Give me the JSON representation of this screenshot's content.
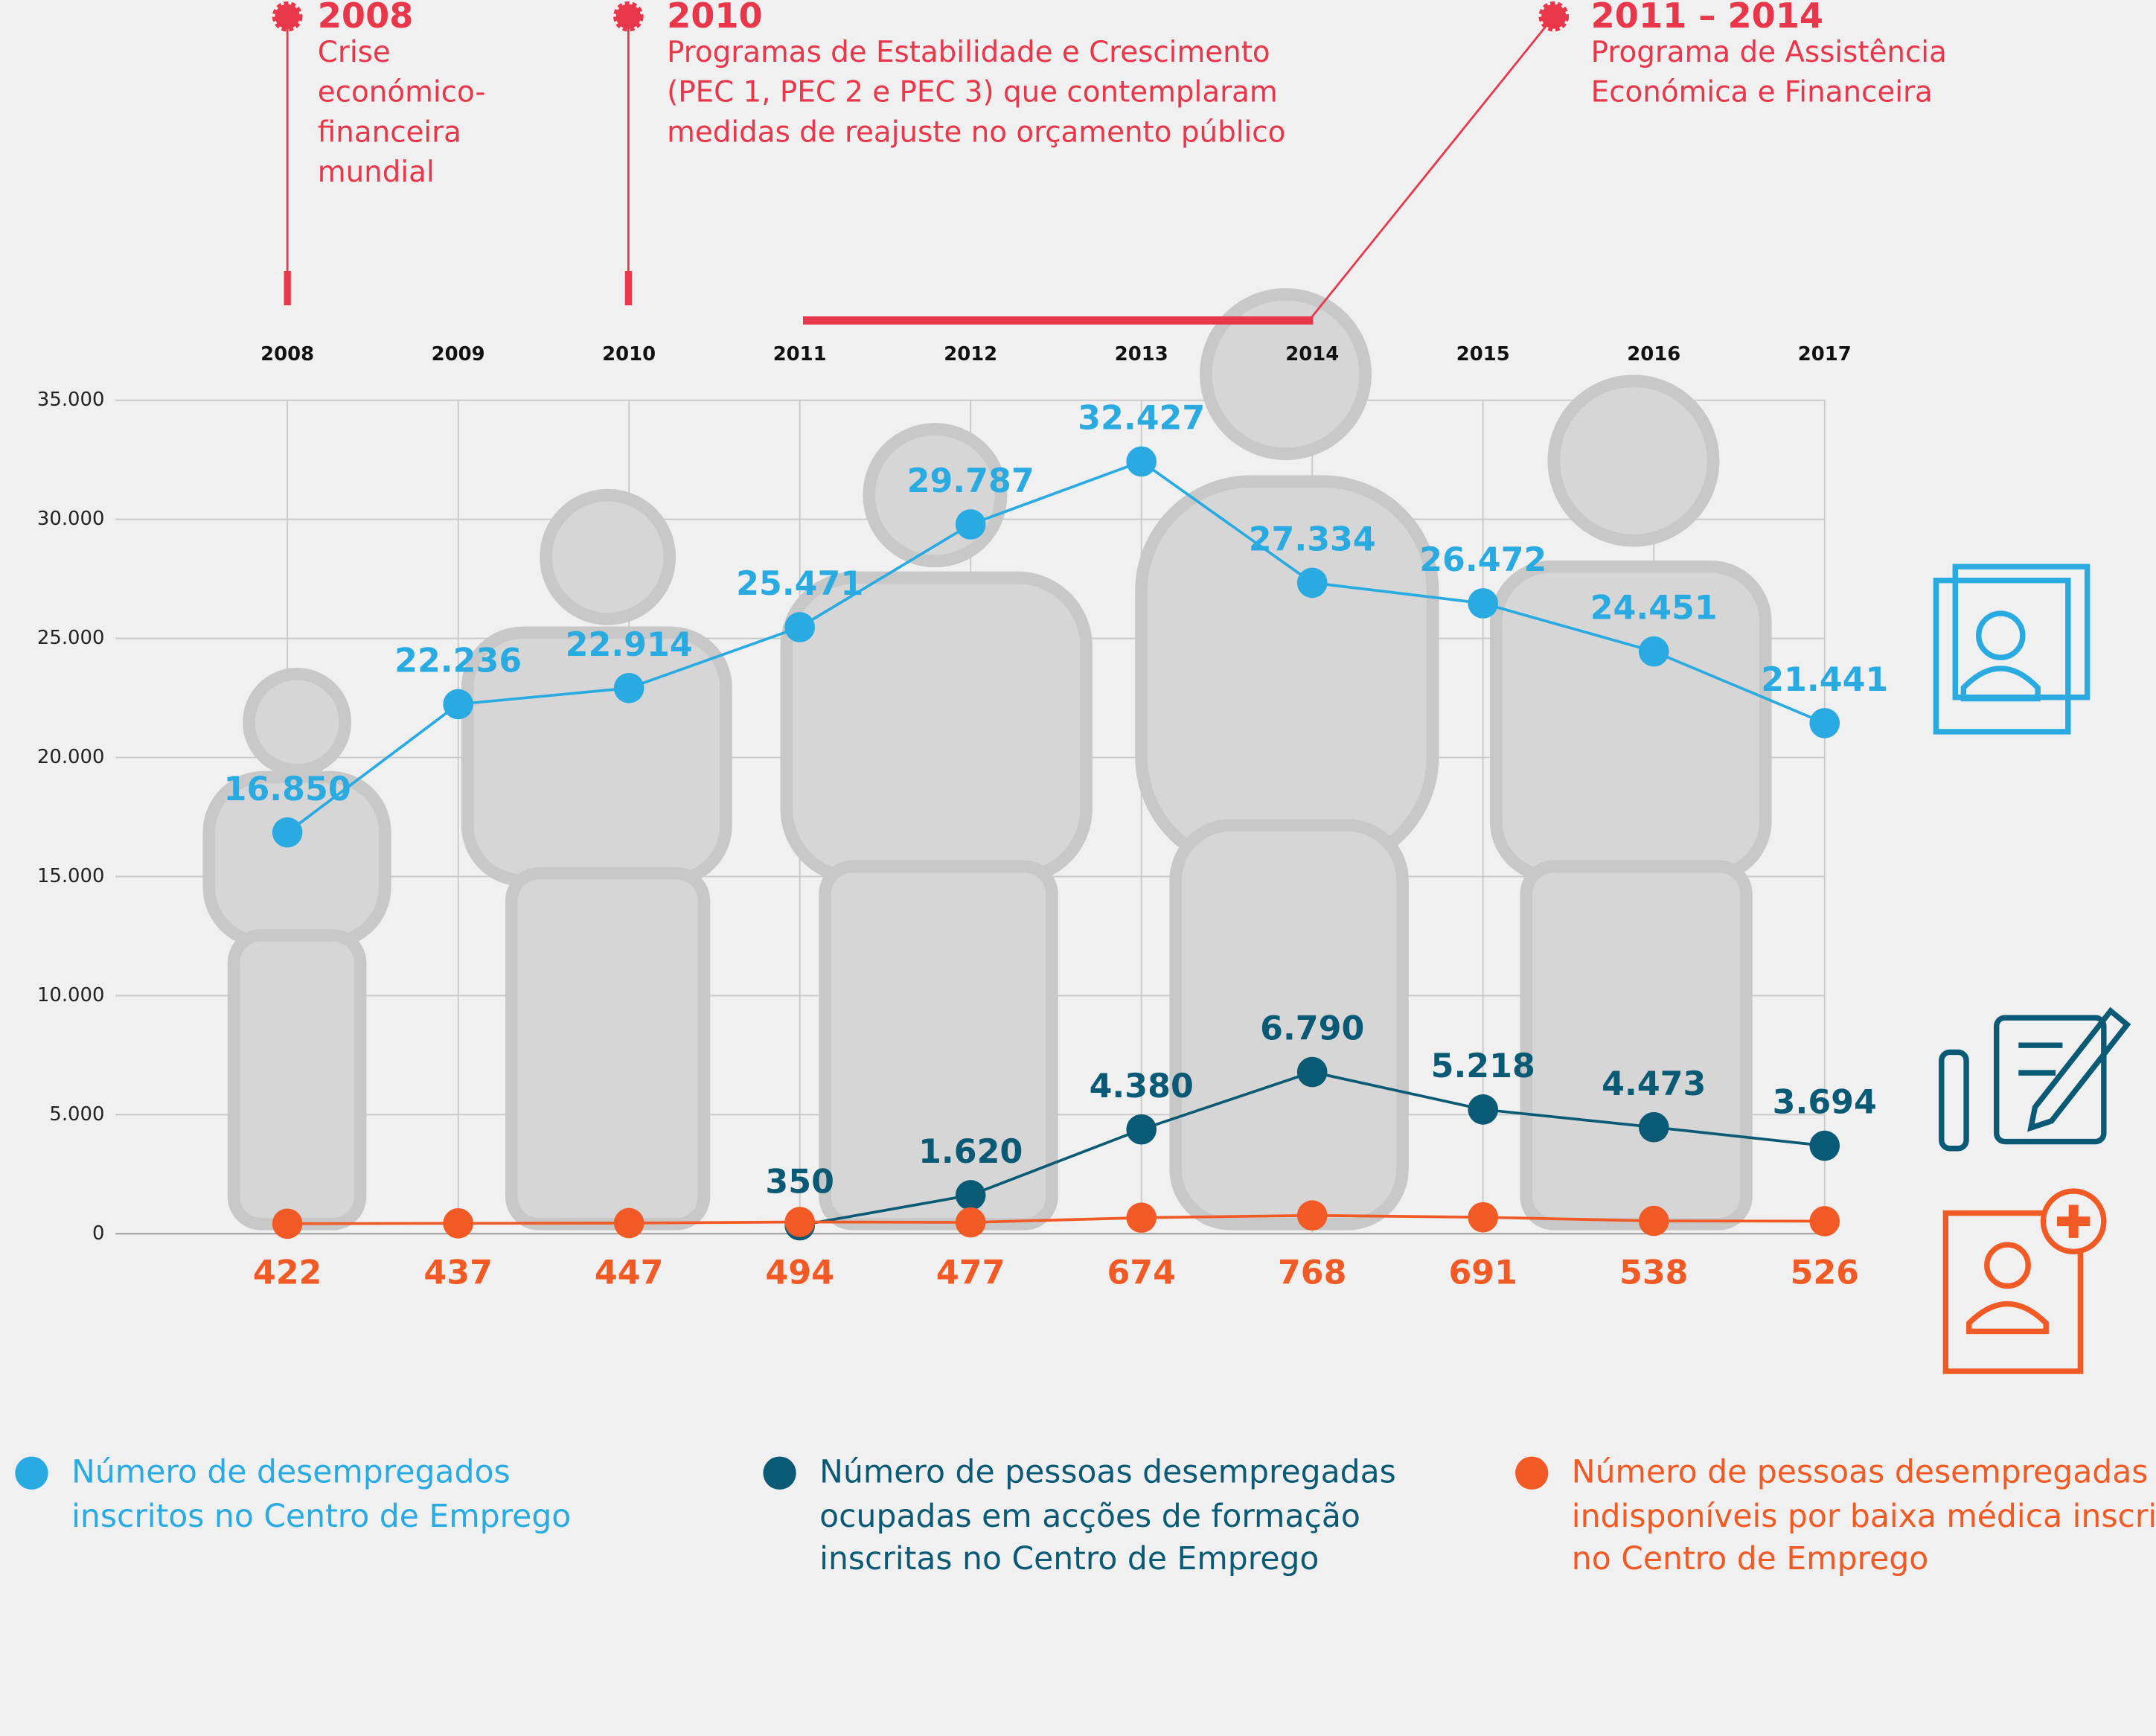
{
  "chart_data": {
    "type": "line",
    "categories": [
      "2008",
      "2009",
      "2010",
      "2011",
      "2012",
      "2013",
      "2014",
      "2015",
      "2016",
      "2017"
    ],
    "ylim": [
      0,
      35000
    ],
    "yticks": [
      0,
      {
        "value": 5000,
        "label": "5.000"
      },
      {
        "value": 10000,
        "label": "10.000"
      },
      {
        "value": 15000,
        "label": "15.000"
      },
      {
        "value": 20000,
        "label": "20.000"
      },
      {
        "value": 25000,
        "label": "25.000"
      },
      {
        "value": 30000,
        "label": "30.000"
      },
      {
        "value": 35000,
        "label": "35.000"
      }
    ],
    "grid": true,
    "annotations": [
      {
        "title": "2008",
        "text": "Crise económico-financeira mundial"
      },
      {
        "title": "2010",
        "text": "Programas de Estabilidade e Crescimento (PEC 1, PEC 2 e PEC 3) que contemplaram medidas de reajuste no orçamento público"
      },
      {
        "title": "2011 – 2014",
        "text": "Programa de Assistência Económica e Financeira"
      }
    ],
    "series": [
      {
        "name": "Número de desempregados inscritos no Centro de Emprego",
        "color": "#29abe2",
        "values": [
          16850,
          22236,
          22914,
          25471,
          29787,
          32427,
          27334,
          26472,
          24451,
          21441
        ],
        "value_labels": [
          "16.850",
          "22.236",
          "22.914",
          "25.471",
          "29.787",
          "32.427",
          "27.334",
          "26.472",
          "24.451",
          "21.441"
        ]
      },
      {
        "name": "Número de pessoas desempregadas ocupadas em acções de formação inscritas no Centro de Emprego",
        "color": "#0b5a75",
        "values": [
          null,
          null,
          null,
          350,
          1620,
          4380,
          6790,
          5218,
          4473,
          3694
        ],
        "value_labels": [
          null,
          null,
          null,
          "350",
          "1.620",
          "4.380",
          "6.790",
          "5.218",
          "4.473",
          "3.694"
        ]
      },
      {
        "name": "Número de pessoas desempregadas indisponíveis por baixa médica inscritas no Centro de Emprego",
        "color": "#f15a24",
        "values": [
          422,
          437,
          447,
          494,
          477,
          674,
          768,
          691,
          538,
          526
        ]
      }
    ]
  }
}
